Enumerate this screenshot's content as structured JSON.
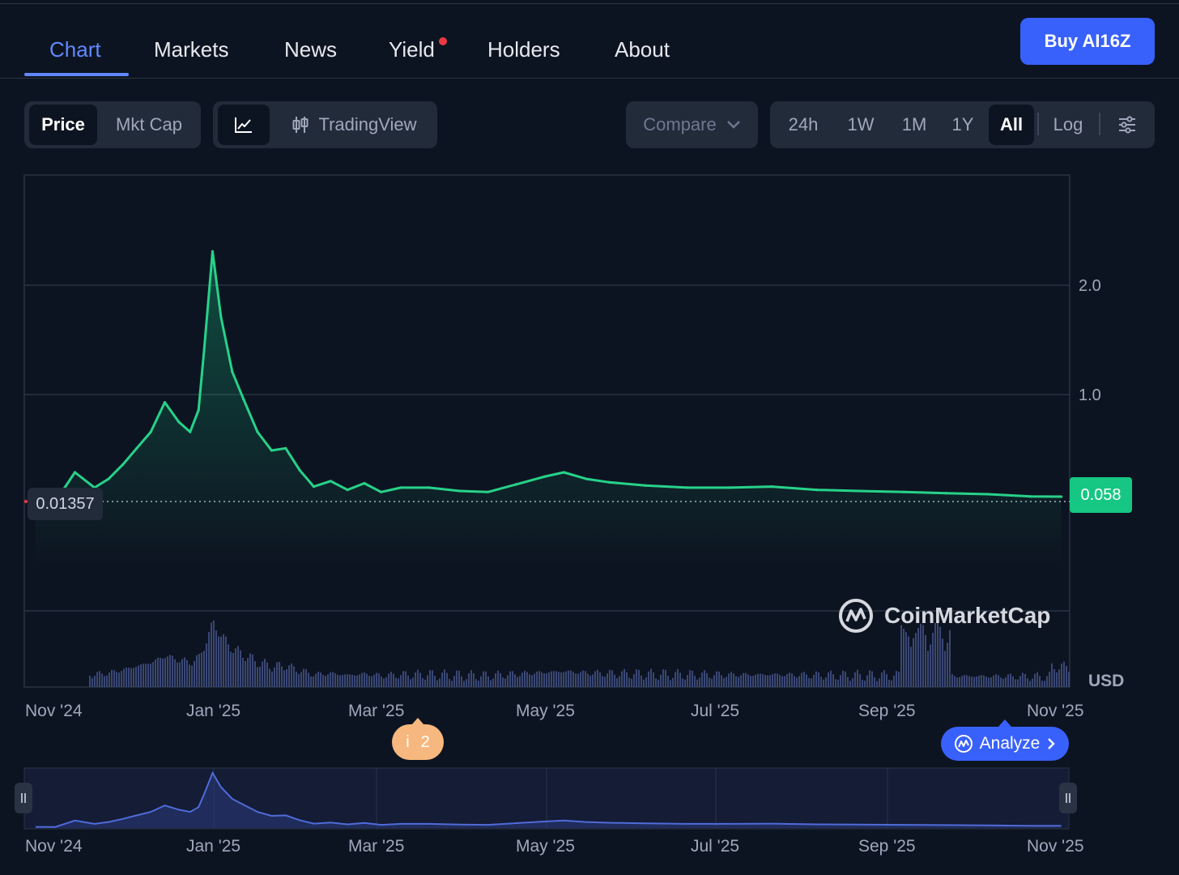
{
  "nav": {
    "tabs": [
      {
        "label": "Chart",
        "active": true
      },
      {
        "label": "Markets",
        "active": false
      },
      {
        "label": "News",
        "active": false
      },
      {
        "label": "Yield",
        "active": false,
        "notification": true
      },
      {
        "label": "Holders",
        "active": false
      },
      {
        "label": "About",
        "active": false
      }
    ],
    "buy_label": "Buy AI16Z"
  },
  "toolbar": {
    "metric": {
      "options": [
        "Price",
        "Mkt Cap"
      ],
      "selected": "Price"
    },
    "chart_type": {
      "line_icon": "line-chart-icon",
      "tradingview_icon": "candlestick-icon",
      "tradingview_label": "TradingView",
      "selected": "line"
    },
    "compare_label": "Compare",
    "ranges": [
      "24h",
      "1W",
      "1M",
      "1Y",
      "All"
    ],
    "selected_range": "All",
    "log_label": "Log",
    "settings_icon": "sliders-icon"
  },
  "colors": {
    "background": "#0d1421",
    "line": "#27d289",
    "accent": "#3861fb",
    "tab_active": "#6188ff",
    "current_price_bg": "#16c784",
    "volume": "#3a4775",
    "navigator_line": "#4f6bd9"
  },
  "chart": {
    "start_price_label": "0.01357",
    "current_price_label": "0.058",
    "currency": "USD",
    "watermark": "CoinMarketCap",
    "info_badge": {
      "icon": "i",
      "count": "2"
    },
    "analyze_label": "Analyze"
  },
  "chart_data": {
    "type": "line",
    "yticks": [
      "2.0",
      "1.0"
    ],
    "ytick_values": [
      2.0,
      1.0
    ],
    "xticks": [
      "Nov '24",
      "Jan '25",
      "Mar '25",
      "May '25",
      "Jul '25",
      "Sep '25",
      "Nov '25"
    ],
    "x": [
      "Nov 5 '24",
      "Nov 12 '24",
      "Nov 19 '24",
      "Nov 26 '24",
      "Dec 1 '24",
      "Dec 6 '24",
      "Dec 11 '24",
      "Dec 16 '24",
      "Dec 21 '24",
      "Dec 26 '24",
      "Dec 30 '24",
      "Jan 2 '25",
      "Jan 4 '25",
      "Jan 7 '25",
      "Jan 10 '25",
      "Jan 14 '25",
      "Jan 18 '25",
      "Jan 23 '25",
      "Jan 28 '25",
      "Feb 2 '25",
      "Feb 7 '25",
      "Feb 12 '25",
      "Feb 18 '25",
      "Feb 24 '25",
      "Mar 2 '25",
      "Mar 8 '25",
      "Mar 15 '25",
      "Mar 25 '25",
      "Apr 5 '25",
      "Apr 15 '25",
      "Apr 25 '25",
      "May 5 '25",
      "May 12 '25",
      "May 20 '25",
      "May 28 '25",
      "Jun 10 '25",
      "Jun 25 '25",
      "Jul 10 '25",
      "Jul 25 '25",
      "Aug 10 '25",
      "Aug 25 '25",
      "Sep 10 '25",
      "Sep 25 '25",
      "Oct 10 '25",
      "Oct 25 '25",
      "Nov 5 '25"
    ],
    "series": [
      {
        "values": [
          0.0136,
          0.01,
          0.28,
          0.14,
          0.22,
          0.35,
          0.5,
          0.65,
          0.92,
          0.74,
          0.65,
          0.85,
          1.4,
          2.3,
          1.7,
          1.2,
          0.95,
          0.65,
          0.48,
          0.5,
          0.3,
          0.15,
          0.2,
          0.12,
          0.18,
          0.1,
          0.14,
          0.14,
          0.11,
          0.1,
          0.17,
          0.24,
          0.28,
          0.22,
          0.19,
          0.16,
          0.14,
          0.14,
          0.15,
          0.12,
          0.11,
          0.1,
          0.09,
          0.08,
          0.06,
          0.058
        ]
      }
    ],
    "volume_peak_months": [
      "Jan '25",
      "Sep '25"
    ],
    "log_scale": false,
    "grid": true
  }
}
